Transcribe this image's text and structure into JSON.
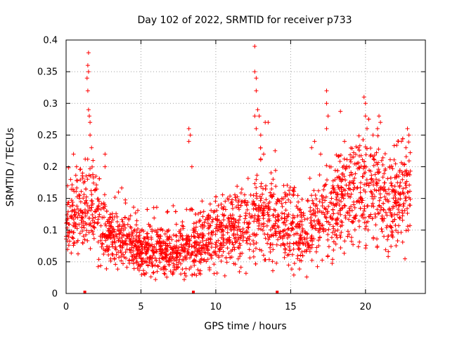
{
  "chart_data": {
    "type": "scatter",
    "title": "Day 102 of 2022, SRMTID for receiver p733",
    "xlabel": "GPS time / hours",
    "ylabel": "SRMTID / TECUs",
    "xlim": [
      0,
      24
    ],
    "ylim": [
      0,
      0.4
    ],
    "xticks": [
      0,
      5,
      10,
      15,
      20
    ],
    "xtick_labels": [
      "0",
      "5",
      "10",
      "15",
      "20"
    ],
    "yticks": [
      0,
      0.05,
      0.1,
      0.15,
      0.2,
      0.25,
      0.3,
      0.35,
      0.4
    ],
    "ytick_labels": [
      "0",
      "0.05",
      "0.1",
      "0.15",
      "0.2",
      "0.25",
      "0.3",
      "0.35",
      "0.4"
    ],
    "grid": true,
    "marker": "plus",
    "color": "#ff0000",
    "trend": [
      [
        0.0,
        0.11
      ],
      [
        0.5,
        0.12
      ],
      [
        1.0,
        0.13
      ],
      [
        1.5,
        0.14
      ],
      [
        2.0,
        0.12
      ],
      [
        2.5,
        0.1
      ],
      [
        3.0,
        0.09
      ],
      [
        4.0,
        0.085
      ],
      [
        5.0,
        0.07
      ],
      [
        6.0,
        0.065
      ],
      [
        7.0,
        0.065
      ],
      [
        8.0,
        0.07
      ],
      [
        9.0,
        0.08
      ],
      [
        10.0,
        0.09
      ],
      [
        11.0,
        0.1
      ],
      [
        12.0,
        0.11
      ],
      [
        13.0,
        0.12
      ],
      [
        14.0,
        0.12
      ],
      [
        15.0,
        0.1
      ],
      [
        16.0,
        0.1
      ],
      [
        17.0,
        0.12
      ],
      [
        18.0,
        0.14
      ],
      [
        19.0,
        0.16
      ],
      [
        20.0,
        0.17
      ],
      [
        21.0,
        0.15
      ],
      [
        22.0,
        0.14
      ],
      [
        23.0,
        0.15
      ]
    ],
    "highlights": [
      [
        0.1,
        0.17
      ],
      [
        0.3,
        0.18
      ],
      [
        0.5,
        0.22
      ],
      [
        0.7,
        0.2
      ],
      [
        1.1,
        0.19
      ],
      [
        1.4,
        0.34
      ],
      [
        1.45,
        0.36
      ],
      [
        1.5,
        0.38
      ],
      [
        1.5,
        0.35
      ],
      [
        1.45,
        0.32
      ],
      [
        1.5,
        0.29
      ],
      [
        1.55,
        0.28
      ],
      [
        1.6,
        0.27
      ],
      [
        1.6,
        0.25
      ],
      [
        1.7,
        0.23
      ],
      [
        1.8,
        0.21
      ],
      [
        2.6,
        0.22
      ],
      [
        2.6,
        0.2
      ],
      [
        3.5,
        0.16
      ],
      [
        8.2,
        0.26
      ],
      [
        8.2,
        0.24
      ],
      [
        8.3,
        0.25
      ],
      [
        8.4,
        0.2
      ],
      [
        12.6,
        0.39
      ],
      [
        12.6,
        0.35
      ],
      [
        12.7,
        0.34
      ],
      [
        12.7,
        0.32
      ],
      [
        12.8,
        0.29
      ],
      [
        12.9,
        0.28
      ],
      [
        12.6,
        0.28
      ],
      [
        12.7,
        0.26
      ],
      [
        13.0,
        0.25
      ],
      [
        13.3,
        0.27
      ],
      [
        13.5,
        0.27
      ],
      [
        13.2,
        0.22
      ],
      [
        16.4,
        0.23
      ],
      [
        16.6,
        0.24
      ],
      [
        17.0,
        0.22
      ],
      [
        17.4,
        0.32
      ],
      [
        17.4,
        0.3
      ],
      [
        17.5,
        0.28
      ],
      [
        17.4,
        0.26
      ],
      [
        17.6,
        0.2
      ],
      [
        18.6,
        0.24
      ],
      [
        19.5,
        0.23
      ],
      [
        19.9,
        0.31
      ],
      [
        20.0,
        0.3
      ],
      [
        20.0,
        0.28
      ],
      [
        20.1,
        0.26
      ],
      [
        20.5,
        0.25
      ],
      [
        20.8,
        0.26
      ],
      [
        20.9,
        0.28
      ],
      [
        21.0,
        0.27
      ],
      [
        22.2,
        0.24
      ],
      [
        22.4,
        0.24
      ],
      [
        22.8,
        0.26
      ],
      [
        22.9,
        0.25
      ],
      [
        22.7,
        0.23
      ]
    ],
    "data_gaps_at_hours": [
      1.25,
      8.5,
      14.1
    ]
  }
}
